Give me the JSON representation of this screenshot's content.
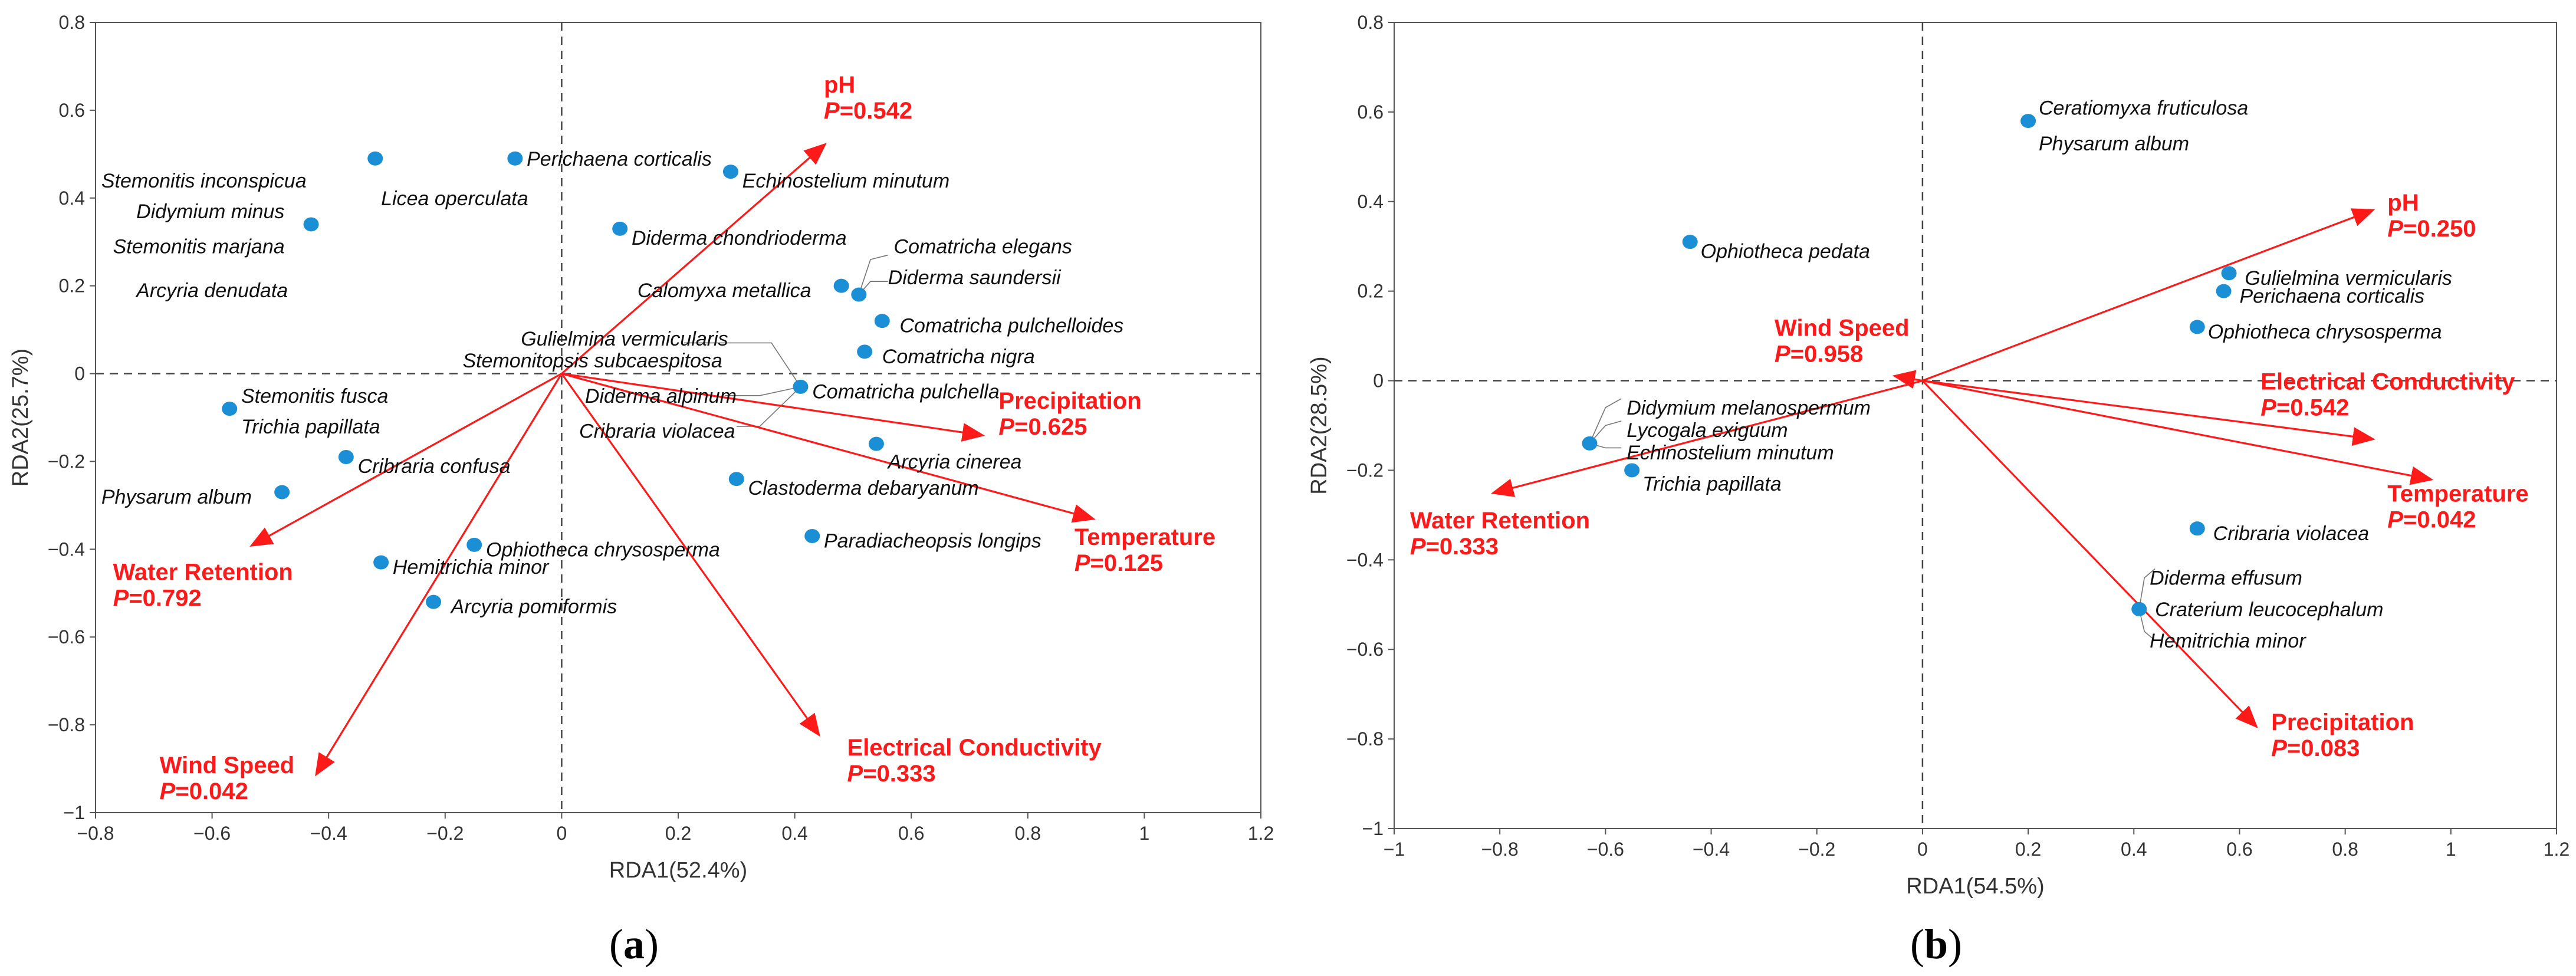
{
  "chart_data": [
    {
      "type": "scatter",
      "panel": "(a)",
      "panel_letter": "a",
      "xlabel": "RDA1(52.4%)",
      "ylabel": "RDA2(25.7%)",
      "xlim": [
        -0.8,
        1.2
      ],
      "ylim": [
        -1.0,
        0.8
      ],
      "xticks": [
        "−0.8",
        "−0.6",
        "−0.4",
        "−0.2",
        "0",
        "0.2",
        "0.4",
        "0.6",
        "0.8",
        "1",
        "1.2"
      ],
      "yticks": [
        "−1",
        "−0.8",
        "−0.6",
        "−0.4",
        "−0.2",
        "0",
        "0.2",
        "0.4",
        "0.6",
        "0.8"
      ],
      "point_color": "#1a8fd6",
      "arrow_color": "#ff1a1a",
      "points": [
        {
          "x": -0.32,
          "y": 0.49
        },
        {
          "x": -0.08,
          "y": 0.49
        },
        {
          "x": 0.29,
          "y": 0.46
        },
        {
          "x": -0.43,
          "y": 0.34
        },
        {
          "x": 0.1,
          "y": 0.33
        },
        {
          "x": 0.48,
          "y": 0.2
        },
        {
          "x": 0.51,
          "y": 0.18
        },
        {
          "x": 0.55,
          "y": 0.12
        },
        {
          "x": 0.52,
          "y": 0.05
        },
        {
          "x": 0.41,
          "y": -0.03
        },
        {
          "x": -0.57,
          "y": -0.08
        },
        {
          "x": 0.54,
          "y": -0.16
        },
        {
          "x": -0.37,
          "y": -0.19
        },
        {
          "x": 0.3,
          "y": -0.24
        },
        {
          "x": -0.48,
          "y": -0.27
        },
        {
          "x": 0.43,
          "y": -0.37
        },
        {
          "x": -0.15,
          "y": -0.39
        },
        {
          "x": -0.31,
          "y": -0.43
        },
        {
          "x": -0.22,
          "y": -0.52
        }
      ],
      "species_labels": [
        {
          "text": "Stemonitis inconspicua",
          "x": -0.79,
          "y": 0.44,
          "anchor": "start"
        },
        {
          "text": "Didymium minus",
          "x": -0.73,
          "y": 0.37,
          "anchor": "start"
        },
        {
          "text": "Stemonitis marjana",
          "x": -0.77,
          "y": 0.29,
          "anchor": "start"
        },
        {
          "text": "Arcyria denudata",
          "x": -0.73,
          "y": 0.19,
          "anchor": "start"
        },
        {
          "text": "Licea operculata",
          "x": -0.31,
          "y": 0.4,
          "anchor": "start"
        },
        {
          "text": "Perichaena corticalis",
          "x": -0.06,
          "y": 0.49,
          "anchor": "start"
        },
        {
          "text": "Echinostelium minutum",
          "x": 0.31,
          "y": 0.44,
          "anchor": "start"
        },
        {
          "text": "Diderma chondrioderma",
          "x": 0.12,
          "y": 0.31,
          "anchor": "start"
        },
        {
          "text": "Comatricha elegans",
          "x": 0.57,
          "y": 0.29,
          "anchor": "start"
        },
        {
          "text": "Diderma saundersii",
          "x": 0.56,
          "y": 0.22,
          "anchor": "start"
        },
        {
          "text": "Calomyxa metallica",
          "x": 0.13,
          "y": 0.19,
          "anchor": "start"
        },
        {
          "text": "Comatricha pulchelloides",
          "x": 0.58,
          "y": 0.11,
          "anchor": "start"
        },
        {
          "text": "Gulielmina vermicularis",
          "x": -0.07,
          "y": 0.08,
          "anchor": "start"
        },
        {
          "text": "Comatricha nigra",
          "x": 0.55,
          "y": 0.04,
          "anchor": "start"
        },
        {
          "text": "Stemonitopsis subcaespitosa",
          "x": -0.17,
          "y": 0.03,
          "anchor": "start"
        },
        {
          "text": "Diderma alpinum",
          "x": 0.04,
          "y": -0.05,
          "anchor": "start"
        },
        {
          "text": "Comatricha pulchella",
          "x": 0.43,
          "y": -0.04,
          "anchor": "start"
        },
        {
          "text": "Stemonitis fusca",
          "x": -0.55,
          "y": -0.05,
          "anchor": "start"
        },
        {
          "text": "Cribraria violacea",
          "x": 0.03,
          "y": -0.13,
          "anchor": "start"
        },
        {
          "text": "Trichia papillata",
          "x": -0.55,
          "y": -0.12,
          "anchor": "start"
        },
        {
          "text": "Arcyria cinerea",
          "x": 0.56,
          "y": -0.2,
          "anchor": "start"
        },
        {
          "text": "Cribraria confusa",
          "x": -0.35,
          "y": -0.21,
          "anchor": "start"
        },
        {
          "text": "Clastoderma debaryanum",
          "x": 0.32,
          "y": -0.26,
          "anchor": "start"
        },
        {
          "text": "Physarum album",
          "x": -0.79,
          "y": -0.28,
          "anchor": "start"
        },
        {
          "text": "Paradiacheopsis longips",
          "x": 0.45,
          "y": -0.38,
          "anchor": "start"
        },
        {
          "text": "Ophiotheca chrysosperma",
          "x": -0.13,
          "y": -0.4,
          "anchor": "start"
        },
        {
          "text": "Hemitrichia minor",
          "x": -0.29,
          "y": -0.44,
          "anchor": "start"
        },
        {
          "text": "Arcyria pomiformis",
          "x": -0.19,
          "y": -0.53,
          "anchor": "start"
        }
      ],
      "leaders": [
        [
          0.51,
          0.18,
          0.53,
          0.21,
          0.56,
          0.21
        ],
        [
          0.51,
          0.18,
          0.53,
          0.26,
          0.56,
          0.27
        ],
        [
          0.41,
          -0.03,
          0.36,
          0.07,
          0.21,
          0.07
        ],
        [
          0.41,
          -0.03,
          0.34,
          -0.05,
          0.28,
          -0.05
        ],
        [
          0.41,
          -0.03,
          0.34,
          -0.12,
          0.3,
          -0.12
        ]
      ],
      "vectors": [
        {
          "name": "pH",
          "p_label": "P",
          "p_value": "=0.542",
          "x": 0.45,
          "y": 0.52,
          "label_x": 0.45,
          "label_y": 0.64,
          "anchor": "start"
        },
        {
          "name": "Precipitation",
          "p_label": "P",
          "p_value": "=0.625",
          "x": 0.72,
          "y": -0.14,
          "label_x": 0.75,
          "label_y": -0.08,
          "anchor": "start"
        },
        {
          "name": "Temperature",
          "p_label": "P",
          "p_value": "=0.125",
          "x": 0.91,
          "y": -0.33,
          "label_x": 0.88,
          "label_y": -0.39,
          "anchor": "start"
        },
        {
          "name": "Electrical Conductivity",
          "p_label": "P",
          "p_value": "=0.333",
          "x": 0.44,
          "y": -0.82,
          "label_x": 0.49,
          "label_y": -0.87,
          "anchor": "start"
        },
        {
          "name": "Water Retention",
          "p_label": "P",
          "p_value": "=0.792",
          "x": -0.53,
          "y": -0.39,
          "label_x": -0.77,
          "label_y": -0.47,
          "anchor": "start"
        },
        {
          "name": "Wind Speed",
          "p_label": "P",
          "p_value": "=0.042",
          "x": -0.42,
          "y": -0.91,
          "label_x": -0.69,
          "label_y": -0.91,
          "anchor": "start"
        }
      ]
    },
    {
      "type": "scatter",
      "panel": "(b)",
      "panel_letter": "b",
      "xlabel": "RDA1(54.5%)",
      "ylabel": "RDA2(28.5%)",
      "xlim": [
        -1.0,
        1.2
      ],
      "ylim": [
        -1.0,
        0.8
      ],
      "xticks": [
        "−1",
        "−0.8",
        "−0.6",
        "−0.4",
        "−0.2",
        "0",
        "0.2",
        "0.4",
        "0.6",
        "0.8",
        "1",
        "1.2"
      ],
      "yticks": [
        "−1",
        "−0.8",
        "−0.6",
        "−0.4",
        "−0.2",
        "0",
        "0.2",
        "0.4",
        "0.6",
        "0.8"
      ],
      "point_color": "#1a8fd6",
      "arrow_color": "#ff1a1a",
      "points": [
        {
          "x": 0.2,
          "y": 0.58
        },
        {
          "x": -0.44,
          "y": 0.31
        },
        {
          "x": 0.58,
          "y": 0.24
        },
        {
          "x": 0.57,
          "y": 0.2
        },
        {
          "x": 0.52,
          "y": 0.12
        },
        {
          "x": -0.63,
          "y": -0.14
        },
        {
          "x": -0.55,
          "y": -0.2
        },
        {
          "x": 0.52,
          "y": -0.33
        },
        {
          "x": 0.41,
          "y": -0.51
        }
      ],
      "species_labels": [
        {
          "text": "Ceratiomyxa fruticulosa",
          "x": 0.22,
          "y": 0.61,
          "anchor": "start"
        },
        {
          "text": "Physarum album",
          "x": 0.22,
          "y": 0.53,
          "anchor": "start"
        },
        {
          "text": "Ophiotheca pedata",
          "x": -0.42,
          "y": 0.29,
          "anchor": "start"
        },
        {
          "text": "Gulielmina vermicularis",
          "x": 0.61,
          "y": 0.23,
          "anchor": "start"
        },
        {
          "text": "Perichaena corticalis",
          "x": 0.6,
          "y": 0.19,
          "anchor": "start"
        },
        {
          "text": "Ophiotheca chrysosperma",
          "x": 0.54,
          "y": 0.11,
          "anchor": "start"
        },
        {
          "text": "Didymium melanospermum",
          "x": -0.56,
          "y": -0.06,
          "anchor": "start"
        },
        {
          "text": "Lycogala exiguum",
          "x": -0.56,
          "y": -0.11,
          "anchor": "start"
        },
        {
          "text": "Echinostelium minutum",
          "x": -0.56,
          "y": -0.16,
          "anchor": "start"
        },
        {
          "text": "Trichia papillata",
          "x": -0.53,
          "y": -0.23,
          "anchor": "start"
        },
        {
          "text": "Cribraria violacea",
          "x": 0.55,
          "y": -0.34,
          "anchor": "start"
        },
        {
          "text": "Diderma effusum",
          "x": 0.43,
          "y": -0.44,
          "anchor": "start"
        },
        {
          "text": "Craterium leucocephalum",
          "x": 0.44,
          "y": -0.51,
          "anchor": "start"
        },
        {
          "text": "Hemitrichia minor",
          "x": 0.43,
          "y": -0.58,
          "anchor": "start"
        }
      ],
      "leaders": [
        [
          -0.63,
          -0.14,
          -0.6,
          -0.06,
          -0.57,
          -0.04
        ],
        [
          -0.63,
          -0.14,
          -0.6,
          -0.1,
          -0.57,
          -0.09
        ],
        [
          -0.63,
          -0.14,
          -0.6,
          -0.15,
          -0.57,
          -0.15
        ],
        [
          0.41,
          -0.51,
          0.42,
          -0.44,
          0.44,
          -0.42
        ],
        [
          0.41,
          -0.51,
          0.42,
          -0.56,
          0.44,
          -0.58
        ]
      ],
      "vectors": [
        {
          "name": "pH",
          "p_label": "P",
          "p_value": "=0.250",
          "x": 0.85,
          "y": 0.38,
          "label_x": 0.88,
          "label_y": 0.38,
          "anchor": "start"
        },
        {
          "name": "Wind Speed",
          "p_label": "P",
          "p_value": "=0.958",
          "x": -0.05,
          "y": 0.01,
          "label_x": -0.28,
          "label_y": 0.1,
          "anchor": "start"
        },
        {
          "name": "Electrical Conductivity",
          "p_label": "P",
          "p_value": "=0.542",
          "x": 0.85,
          "y": -0.13,
          "label_x": 0.64,
          "label_y": -0.02,
          "anchor": "start"
        },
        {
          "name": "Temperature",
          "p_label": "P",
          "p_value": "=0.042",
          "x": 0.96,
          "y": -0.22,
          "label_x": 0.88,
          "label_y": -0.27,
          "anchor": "start"
        },
        {
          "name": "Water Retention",
          "p_label": "P",
          "p_value": "=0.333",
          "x": -0.81,
          "y": -0.25,
          "label_x": -0.97,
          "label_y": -0.33,
          "anchor": "start"
        },
        {
          "name": "Precipitation",
          "p_label": "P",
          "p_value": "=0.083",
          "x": 0.63,
          "y": -0.77,
          "label_x": 0.66,
          "label_y": -0.78,
          "anchor": "start"
        }
      ]
    }
  ]
}
